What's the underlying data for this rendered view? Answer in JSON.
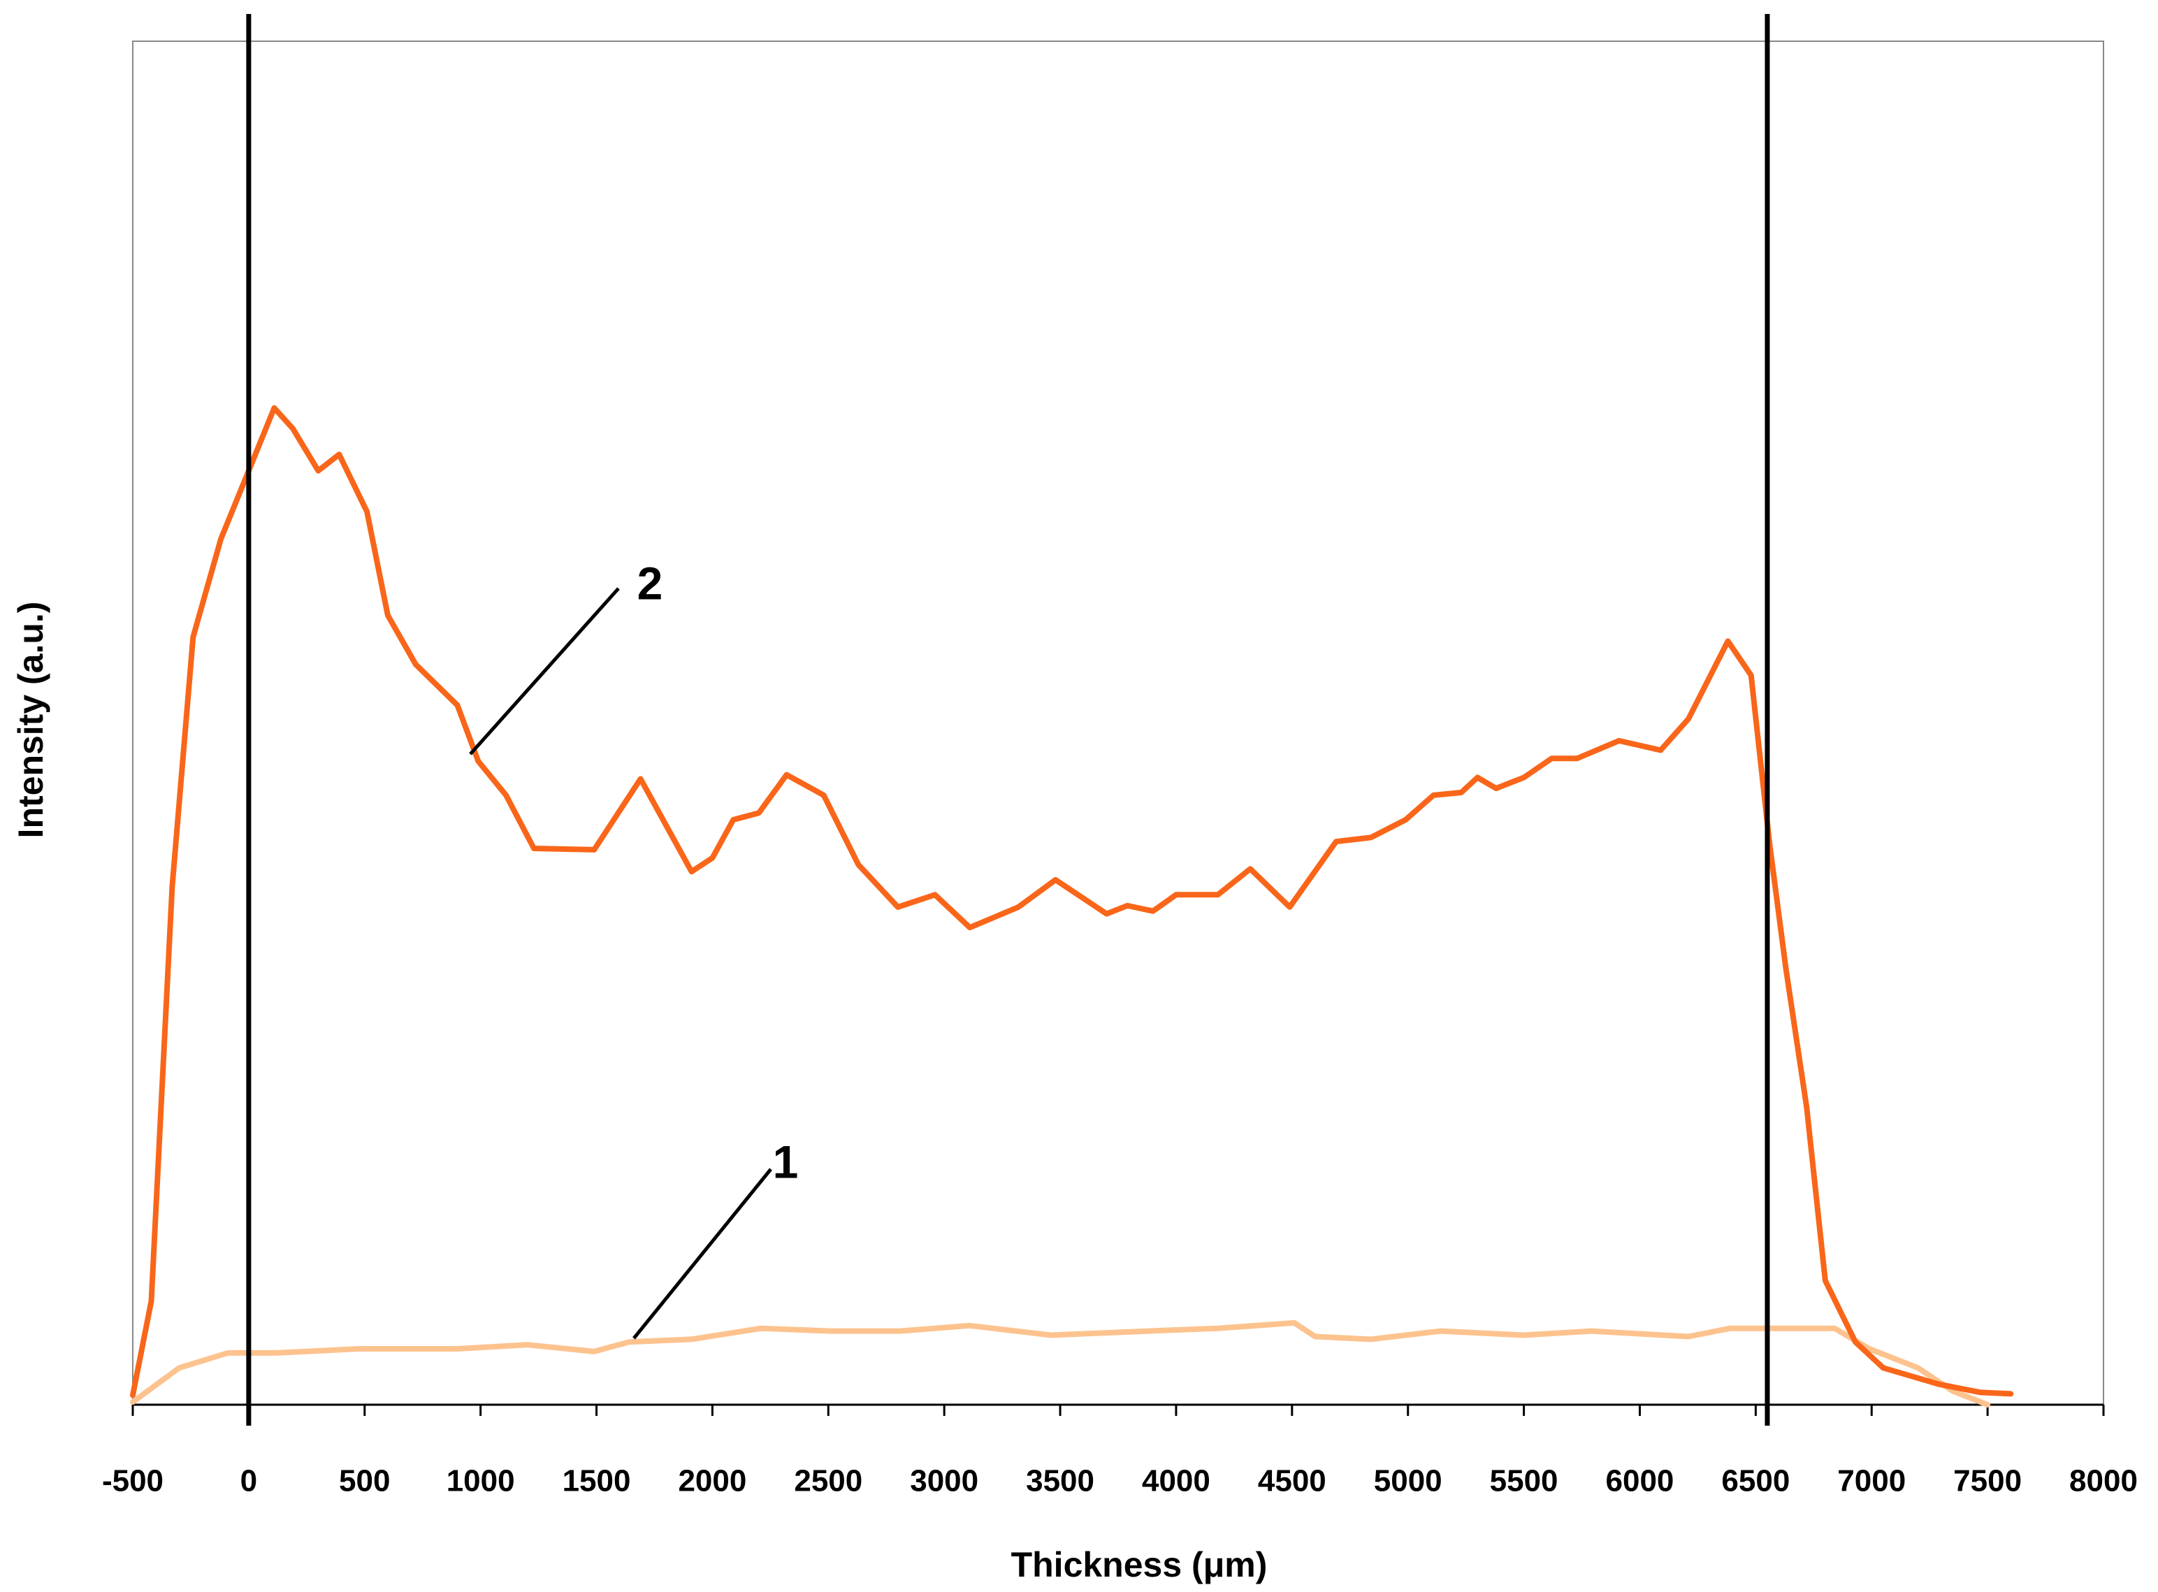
{
  "chart_data": {
    "type": "line",
    "xlabel": "Thickness (μm)",
    "ylabel": "Intensity (a.u.)",
    "xlim": [
      -500,
      8000
    ],
    "xticks": [
      -500,
      0,
      500,
      1000,
      1500,
      2000,
      2500,
      3000,
      3500,
      4000,
      4500,
      5000,
      5500,
      6000,
      6500,
      7000,
      7500,
      8000
    ],
    "ylim": [
      0,
      100
    ],
    "vlines": [
      0,
      6550
    ],
    "series": [
      {
        "name": "1",
        "color": "#fdc38e",
        "x": [
          -500,
          -300,
          -90,
          120,
          480,
          900,
          1200,
          1490,
          1640,
          1910,
          2210,
          2510,
          2810,
          3110,
          3460,
          3880,
          4180,
          4510,
          4600,
          4840,
          5140,
          5500,
          5790,
          6210,
          6390,
          6840,
          6990,
          7200,
          7350,
          7500
        ],
        "values": [
          0.2,
          2.7,
          3.8,
          3.8,
          4.1,
          4.1,
          4.4,
          3.9,
          4.6,
          4.8,
          5.6,
          5.4,
          5.4,
          5.8,
          5.1,
          5.4,
          5.6,
          6.0,
          5.0,
          4.8,
          5.4,
          5.1,
          5.4,
          5.0,
          5.6,
          5.6,
          4.1,
          2.7,
          1.0,
          0
        ]
      },
      {
        "name": "2",
        "color": "#f9661a",
        "x": [
          -500,
          -420,
          -330,
          -240,
          -120,
          0,
          110,
          190,
          300,
          390,
          510,
          600,
          720,
          900,
          990,
          1110,
          1230,
          1490,
          1690,
          1910,
          2000,
          2090,
          2200,
          2320,
          2480,
          2630,
          2800,
          2960,
          3110,
          3320,
          3480,
          3700,
          3790,
          3900,
          4000,
          4180,
          4320,
          4490,
          4690,
          4840,
          4990,
          5110,
          5230,
          5300,
          5380,
          5500,
          5620,
          5730,
          5910,
          6090,
          6210,
          6380,
          6480,
          6560,
          6630,
          6720,
          6800,
          6930,
          7050,
          7290,
          7470,
          7600
        ],
        "values": [
          0.7,
          7.6,
          38,
          56.3,
          63.5,
          68.5,
          73.1,
          71.6,
          68.5,
          69.7,
          65.5,
          57.9,
          54.3,
          51.3,
          47.2,
          44.7,
          40.8,
          40.7,
          45.9,
          39.1,
          40.1,
          42.9,
          43.4,
          46.2,
          44.7,
          39.6,
          36.5,
          37.4,
          35.0,
          36.5,
          38.5,
          36.0,
          36.6,
          36.2,
          37.4,
          37.4,
          39.3,
          36.5,
          41.3,
          41.6,
          42.9,
          44.7,
          44.9,
          46.0,
          45.2,
          46.0,
          47.4,
          47.4,
          48.7,
          48.0,
          50.3,
          56.0,
          53.5,
          41.1,
          32.0,
          21.8,
          9.1,
          4.6,
          2.7,
          1.5,
          0.9,
          0.8
        ]
      }
    ]
  }
}
